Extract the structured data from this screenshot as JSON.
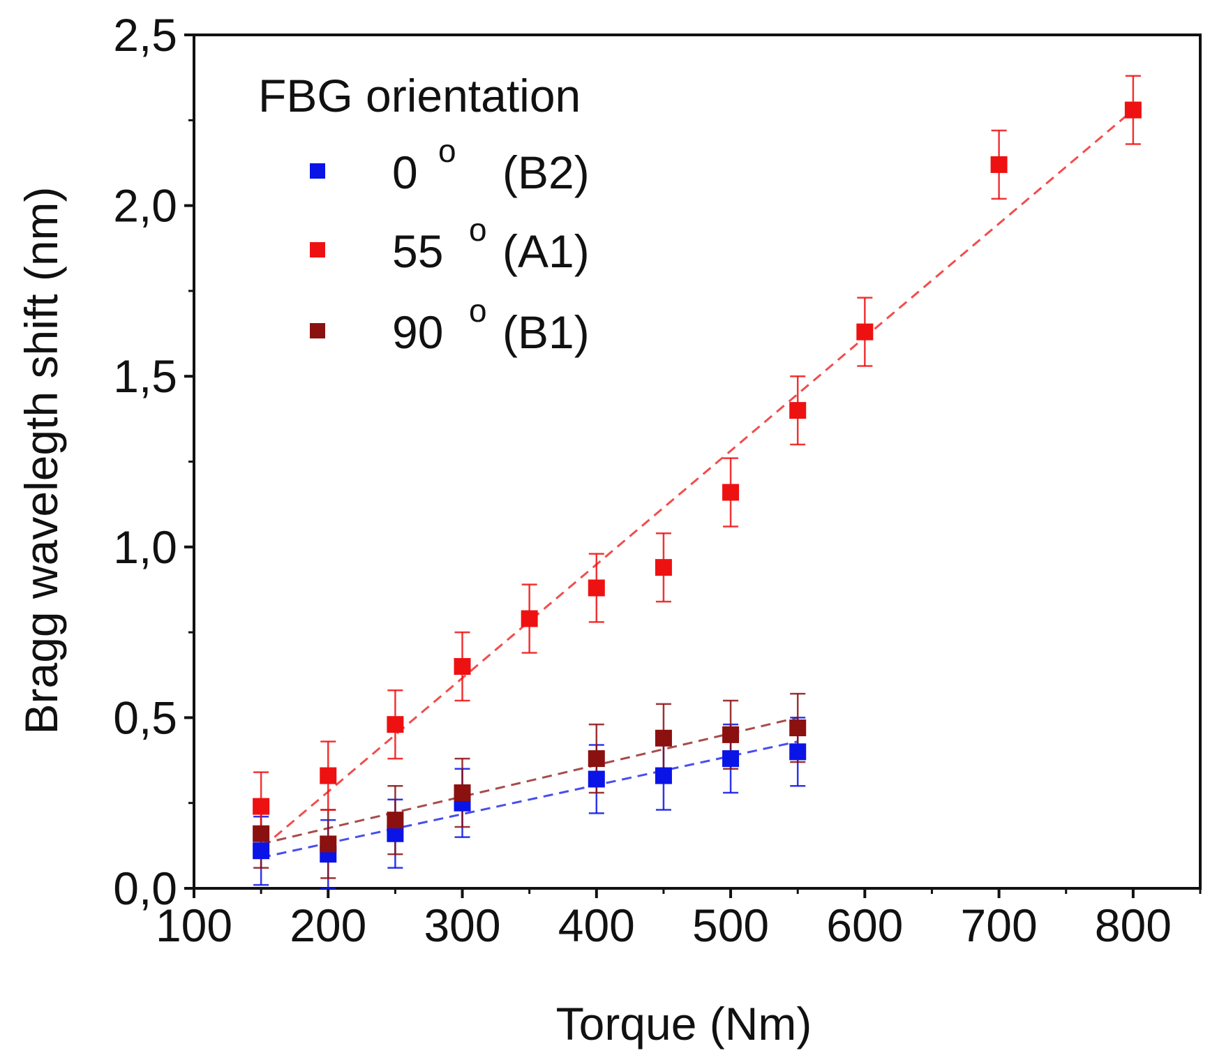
{
  "chart_data": {
    "type": "scatter",
    "xlabel": "Torque (Nm)",
    "ylabel": "Bragg wavelegth shift (nm)",
    "xlim": [
      100,
      850
    ],
    "ylim": [
      0,
      2.5
    ],
    "x_ticks": [
      100,
      200,
      300,
      400,
      500,
      600,
      700,
      800
    ],
    "x_tick_labels": [
      "100",
      "200",
      "300",
      "400",
      "500",
      "600",
      "700",
      "800"
    ],
    "y_ticks": [
      0,
      0.5,
      1.0,
      1.5,
      2.0,
      2.5
    ],
    "y_tick_labels": [
      "0,0",
      "0,5",
      "1,0",
      "1,5",
      "2,0",
      "2,5"
    ],
    "grid": false,
    "legend": {
      "title": "FBG orientation",
      "position": "top-left"
    },
    "series": [
      {
        "name": "0 ° (B2)",
        "label_main": "0",
        "label_deg": "o",
        "label_code": "(B2)",
        "color": "#0a14e6",
        "x": [
          150,
          200,
          250,
          300,
          400,
          450,
          500,
          550
        ],
        "y": [
          0.11,
          0.1,
          0.16,
          0.25,
          0.32,
          0.33,
          0.38,
          0.4
        ],
        "error": [
          0.1,
          0.1,
          0.1,
          0.1,
          0.1,
          0.1,
          0.1,
          0.1
        ],
        "trend": {
          "x": [
            150,
            550
          ],
          "y": [
            0.09,
            0.43
          ]
        }
      },
      {
        "name": "55 ° (A1)",
        "label_main": "55",
        "label_deg": "o",
        "label_code": "(A1)",
        "color": "#ee1111",
        "x": [
          150,
          200,
          250,
          300,
          350,
          400,
          450,
          500,
          550,
          600,
          700,
          800
        ],
        "y": [
          0.24,
          0.33,
          0.48,
          0.65,
          0.79,
          0.88,
          0.94,
          1.16,
          1.4,
          1.63,
          2.12,
          2.28
        ],
        "error": [
          0.1,
          0.1,
          0.1,
          0.1,
          0.1,
          0.1,
          0.1,
          0.1,
          0.1,
          0.1,
          0.1,
          0.1
        ],
        "trend": {
          "x": [
            160,
            800
          ],
          "y": [
            0.15,
            2.28
          ]
        }
      },
      {
        "name": "90 ° (B1)",
        "label_main": "90",
        "label_deg": "o",
        "label_code": "(B1)",
        "color": "#8b1010",
        "x": [
          150,
          200,
          250,
          300,
          400,
          450,
          500,
          550
        ],
        "y": [
          0.16,
          0.13,
          0.2,
          0.28,
          0.38,
          0.44,
          0.45,
          0.47
        ],
        "error": [
          0.1,
          0.1,
          0.1,
          0.1,
          0.1,
          0.1,
          0.1,
          0.1
        ],
        "trend": {
          "x": [
            150,
            550
          ],
          "y": [
            0.13,
            0.5
          ]
        }
      }
    ]
  }
}
